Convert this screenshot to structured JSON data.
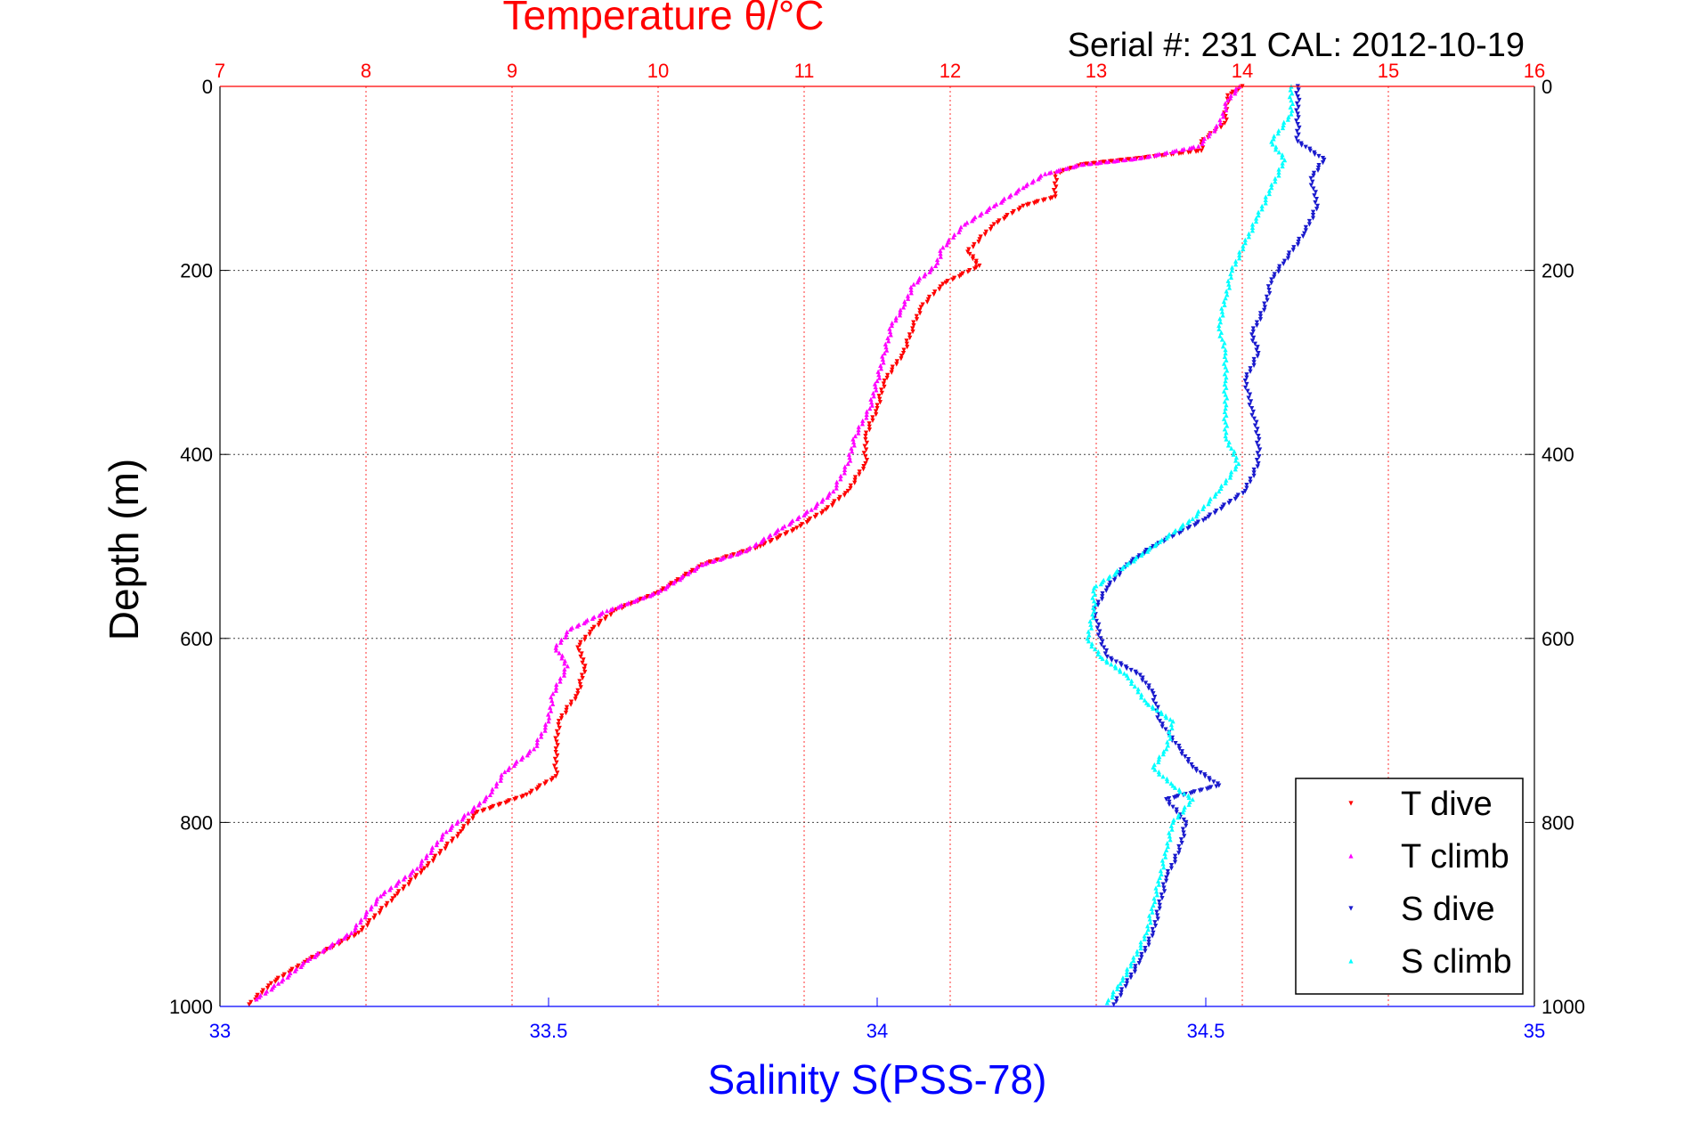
{
  "chart_data": {
    "type": "scatter",
    "title": "Temperature θ/°C",
    "subtitle": "Serial #: 231  CAL: 2012-10-19",
    "xlabel": "Salinity S(PSS-78)",
    "ylabel": "Depth (m)",
    "x_top_label": "Temperature θ/°C",
    "x_top_range": [
      7,
      16
    ],
    "x_top_ticks": [
      "7",
      "8",
      "9",
      "10",
      "11",
      "12",
      "13",
      "14",
      "15",
      "16"
    ],
    "x_bottom_range": [
      33,
      35
    ],
    "x_bottom_ticks": [
      "33",
      "33.5",
      "34",
      "34.5",
      "35"
    ],
    "y_range": [
      0,
      1000
    ],
    "y_reversed": true,
    "y_ticks": [
      "0",
      "200",
      "400",
      "600",
      "800",
      "1000"
    ],
    "grid": true,
    "legend_position": "bottom-right",
    "series": [
      {
        "name": "T dive",
        "axis": "temperature",
        "color": "#ff0000",
        "marker": "triangle-down",
        "points": [
          [
            14.0,
            0
          ],
          [
            13.9,
            10
          ],
          [
            13.88,
            40
          ],
          [
            13.72,
            60
          ],
          [
            13.72,
            70
          ],
          [
            13.3,
            78
          ],
          [
            12.9,
            85
          ],
          [
            12.72,
            95
          ],
          [
            12.72,
            120
          ],
          [
            12.5,
            130
          ],
          [
            12.3,
            150
          ],
          [
            12.12,
            180
          ],
          [
            12.2,
            195
          ],
          [
            11.95,
            215
          ],
          [
            11.8,
            240
          ],
          [
            11.75,
            260
          ],
          [
            11.68,
            290
          ],
          [
            11.55,
            320
          ],
          [
            11.5,
            350
          ],
          [
            11.42,
            380
          ],
          [
            11.42,
            410
          ],
          [
            11.3,
            440
          ],
          [
            11.15,
            460
          ],
          [
            10.95,
            480
          ],
          [
            10.7,
            500
          ],
          [
            10.3,
            520
          ],
          [
            10.0,
            550
          ],
          [
            9.7,
            570
          ],
          [
            9.55,
            590
          ],
          [
            9.45,
            610
          ],
          [
            9.5,
            630
          ],
          [
            9.45,
            660
          ],
          [
            9.32,
            690
          ],
          [
            9.3,
            720
          ],
          [
            9.3,
            750
          ],
          [
            9.1,
            770
          ],
          [
            8.75,
            790
          ],
          [
            8.65,
            810
          ],
          [
            8.4,
            850
          ],
          [
            8.2,
            880
          ],
          [
            7.95,
            920
          ],
          [
            7.6,
            950
          ],
          [
            7.35,
            975
          ],
          [
            7.2,
            998
          ]
        ]
      },
      {
        "name": "T climb",
        "axis": "temperature",
        "color": "#ff00ff",
        "marker": "triangle-up",
        "points": [
          [
            13.98,
            0
          ],
          [
            13.9,
            15
          ],
          [
            13.85,
            40
          ],
          [
            13.7,
            65
          ],
          [
            13.3,
            78
          ],
          [
            12.9,
            85
          ],
          [
            12.65,
            95
          ],
          [
            12.5,
            110
          ],
          [
            12.3,
            130
          ],
          [
            12.1,
            150
          ],
          [
            11.95,
            175
          ],
          [
            11.9,
            195
          ],
          [
            11.75,
            215
          ],
          [
            11.68,
            240
          ],
          [
            11.6,
            260
          ],
          [
            11.55,
            290
          ],
          [
            11.5,
            320
          ],
          [
            11.45,
            350
          ],
          [
            11.35,
            380
          ],
          [
            11.3,
            410
          ],
          [
            11.2,
            440
          ],
          [
            11.05,
            460
          ],
          [
            10.85,
            480
          ],
          [
            10.6,
            505
          ],
          [
            10.3,
            520
          ],
          [
            10.0,
            550
          ],
          [
            9.65,
            570
          ],
          [
            9.4,
            590
          ],
          [
            9.3,
            610
          ],
          [
            9.38,
            630
          ],
          [
            9.28,
            660
          ],
          [
            9.25,
            690
          ],
          [
            9.15,
            720
          ],
          [
            8.95,
            745
          ],
          [
            8.85,
            770
          ],
          [
            8.7,
            790
          ],
          [
            8.55,
            810
          ],
          [
            8.35,
            850
          ],
          [
            8.1,
            880
          ],
          [
            7.9,
            920
          ],
          [
            7.6,
            950
          ],
          [
            7.4,
            975
          ],
          [
            7.25,
            992
          ]
        ]
      },
      {
        "name": "S dive",
        "axis": "salinity",
        "color": "#1a1acd",
        "marker": "triangle-down",
        "points": [
          [
            34.64,
            0
          ],
          [
            34.64,
            30
          ],
          [
            34.64,
            60
          ],
          [
            34.68,
            80
          ],
          [
            34.66,
            100
          ],
          [
            34.67,
            130
          ],
          [
            34.65,
            160
          ],
          [
            34.62,
            190
          ],
          [
            34.6,
            210
          ],
          [
            34.59,
            240
          ],
          [
            34.57,
            270
          ],
          [
            34.58,
            290
          ],
          [
            34.56,
            320
          ],
          [
            34.57,
            350
          ],
          [
            34.58,
            380
          ],
          [
            34.58,
            410
          ],
          [
            34.56,
            440
          ],
          [
            34.5,
            470
          ],
          [
            34.42,
            500
          ],
          [
            34.38,
            520
          ],
          [
            34.35,
            545
          ],
          [
            34.33,
            570
          ],
          [
            34.34,
            600
          ],
          [
            34.35,
            620
          ],
          [
            34.4,
            640
          ],
          [
            34.42,
            660
          ],
          [
            34.43,
            690
          ],
          [
            34.46,
            720
          ],
          [
            34.48,
            740
          ],
          [
            34.52,
            760
          ],
          [
            34.44,
            775
          ],
          [
            34.47,
            800
          ],
          [
            34.46,
            830
          ],
          [
            34.44,
            860
          ],
          [
            34.43,
            890
          ],
          [
            34.42,
            920
          ],
          [
            34.4,
            950
          ],
          [
            34.38,
            975
          ],
          [
            34.36,
            998
          ]
        ]
      },
      {
        "name": "S climb",
        "axis": "salinity",
        "color": "#00ffff",
        "marker": "triangle-up",
        "points": [
          [
            34.63,
            0
          ],
          [
            34.63,
            30
          ],
          [
            34.6,
            60
          ],
          [
            34.62,
            80
          ],
          [
            34.6,
            110
          ],
          [
            34.58,
            140
          ],
          [
            34.56,
            170
          ],
          [
            34.54,
            200
          ],
          [
            34.53,
            230
          ],
          [
            34.52,
            260
          ],
          [
            34.53,
            290
          ],
          [
            34.53,
            320
          ],
          [
            34.53,
            350
          ],
          [
            34.53,
            380
          ],
          [
            34.55,
            410
          ],
          [
            34.52,
            440
          ],
          [
            34.48,
            470
          ],
          [
            34.43,
            495
          ],
          [
            34.38,
            520
          ],
          [
            34.33,
            545
          ],
          [
            34.33,
            570
          ],
          [
            34.32,
            600
          ],
          [
            34.34,
            620
          ],
          [
            34.38,
            640
          ],
          [
            34.41,
            670
          ],
          [
            34.45,
            690
          ],
          [
            34.44,
            720
          ],
          [
            34.42,
            740
          ],
          [
            34.45,
            760
          ],
          [
            34.48,
            775
          ],
          [
            34.45,
            800
          ],
          [
            34.44,
            830
          ],
          [
            34.43,
            860
          ],
          [
            34.42,
            890
          ],
          [
            34.41,
            920
          ],
          [
            34.39,
            950
          ],
          [
            34.37,
            975
          ],
          [
            34.35,
            996
          ]
        ]
      }
    ]
  }
}
